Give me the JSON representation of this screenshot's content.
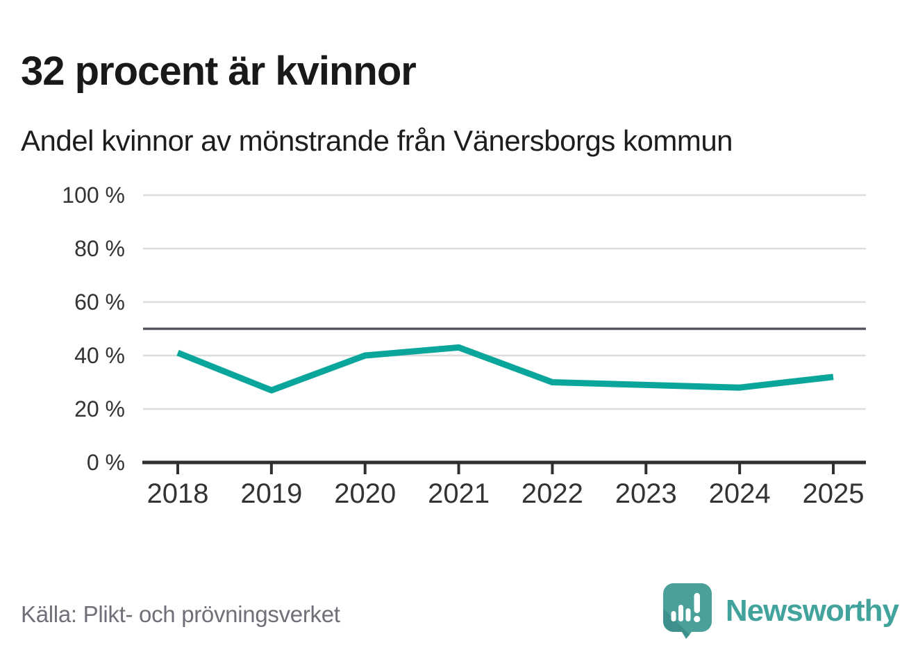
{
  "header": {
    "title": "32 procent är kvinnor",
    "subtitle": "Andel kvinnor av mönstrande från Vänersborgs kommun"
  },
  "chart_data": {
    "type": "line",
    "title": "Andel kvinnor av mönstrande från Vänersborgs kommun",
    "x": [
      "2018",
      "2019",
      "2020",
      "2021",
      "2022",
      "2023",
      "2024",
      "2025"
    ],
    "series": [
      {
        "name": "Andel kvinnor av mönstrande",
        "color": "#0ba69b",
        "values": [
          41,
          27,
          40,
          43,
          30,
          29,
          28,
          32
        ]
      }
    ],
    "unit": "%",
    "xlabel": "",
    "ylabel": "",
    "ylim": [
      0,
      100
    ],
    "yticks": [
      {
        "value": 0,
        "label": "0 %"
      },
      {
        "value": 20,
        "label": "20 %"
      },
      {
        "value": 40,
        "label": "40 %"
      },
      {
        "value": 60,
        "label": "60 %"
      },
      {
        "value": 80,
        "label": "80 %"
      },
      {
        "value": 100,
        "label": "100 %"
      }
    ],
    "reference_line": {
      "value": 50,
      "color": "#55565e"
    },
    "grid": "horizontal",
    "legend": "none",
    "last_point_label": "32"
  },
  "footer": {
    "source": "Källa: Plikt- och prövningsverket",
    "brand": "Newsworthy"
  },
  "colors": {
    "accent_line": "#0ba69b",
    "gridline": "#dcdcdc",
    "reference_line": "#55565e",
    "axis": "#2f2f2f",
    "tick_label": "#333333",
    "title_text": "#191917",
    "source_text": "#6f6f78",
    "logo_bubble": "#4aa19a",
    "logo_shade": "#33847f",
    "wordmark": "#42a39c"
  }
}
